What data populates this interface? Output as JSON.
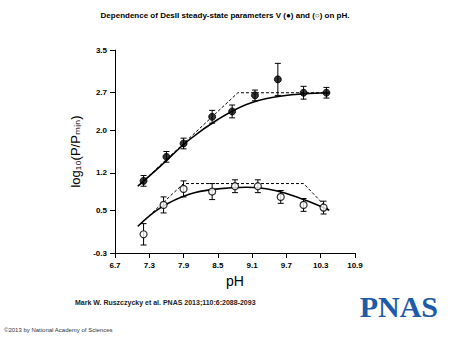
{
  "chart_data": {
    "type": "scatter",
    "title": "Dependence of DesII steady-state parameters V (●) and (○) on pH.",
    "x_label": "pH",
    "y_label": "log₁₀(P/Pₘᵢₙ)",
    "xlim": [
      6.7,
      10.9
    ],
    "xticks": [
      6.7,
      7.3,
      7.9,
      8.5,
      9.1,
      9.7,
      10.3,
      10.9
    ],
    "ylim": [
      -0.3,
      3.5
    ],
    "yticks": [
      -0.3,
      0.5,
      1.2,
      {
        "value": 2,
        "label": "2.0"
      },
      2.7,
      3.5
    ],
    "grid": false,
    "series": [
      {
        "type": "scatter",
        "marker": "circle",
        "color": "#000000",
        "x": [
          7.2,
          7.6,
          7.9,
          8.4,
          8.75,
          9.15,
          9.55,
          10.0,
          10.4
        ],
        "values": [
          1.05,
          1.5,
          1.75,
          2.25,
          2.35,
          2.65,
          2.95,
          2.7,
          2.7
        ],
        "errors": [
          0.1,
          0.1,
          0.1,
          0.12,
          0.12,
          0.1,
          0.3,
          0.12,
          0.1
        ]
      },
      {
        "type": "scatter",
        "marker": "open_circle",
        "color": "#000000",
        "x": [
          7.2,
          7.55,
          7.9,
          8.4,
          8.8,
          9.2,
          9.6,
          10.0,
          10.35
        ],
        "values": [
          0.05,
          0.6,
          0.9,
          0.85,
          0.95,
          0.95,
          0.75,
          0.6,
          0.55
        ],
        "errors": [
          0.2,
          0.15,
          0.15,
          0.15,
          0.12,
          0.12,
          0.12,
          0.12,
          0.12
        ]
      },
      {
        "type": "line",
        "line_style": "solid",
        "color": "#000000",
        "x": [
          7.1,
          7.5,
          8.0,
          8.5,
          9.0,
          9.5,
          10.0,
          10.45
        ],
        "values": [
          0.95,
          1.33,
          1.82,
          2.2,
          2.48,
          2.62,
          2.68,
          2.7
        ]
      },
      {
        "type": "line",
        "line_style": "dashed",
        "color": "#000000",
        "x": [
          7.1,
          8.85,
          10.45
        ],
        "values": [
          0.95,
          2.7,
          2.7
        ]
      },
      {
        "type": "line",
        "line_style": "solid",
        "color": "#000000",
        "x": [
          7.1,
          7.5,
          8.0,
          8.5,
          9.0,
          9.5,
          10.0,
          10.45
        ],
        "values": [
          0.2,
          0.55,
          0.8,
          0.9,
          0.93,
          0.87,
          0.7,
          0.5
        ]
      },
      {
        "type": "line",
        "line_style": "dashed",
        "color": "#000000",
        "x": [
          7.1,
          7.9,
          10.0,
          10.45
        ],
        "values": [
          0.2,
          1.0,
          1.0,
          0.5
        ]
      }
    ],
    "annotations": [
      "Mark W. Ruszczycky et al. PNAS 2013;110:6:2088-2093",
      "©2013 by National Academy of Sciences",
      "PNAS"
    ]
  }
}
